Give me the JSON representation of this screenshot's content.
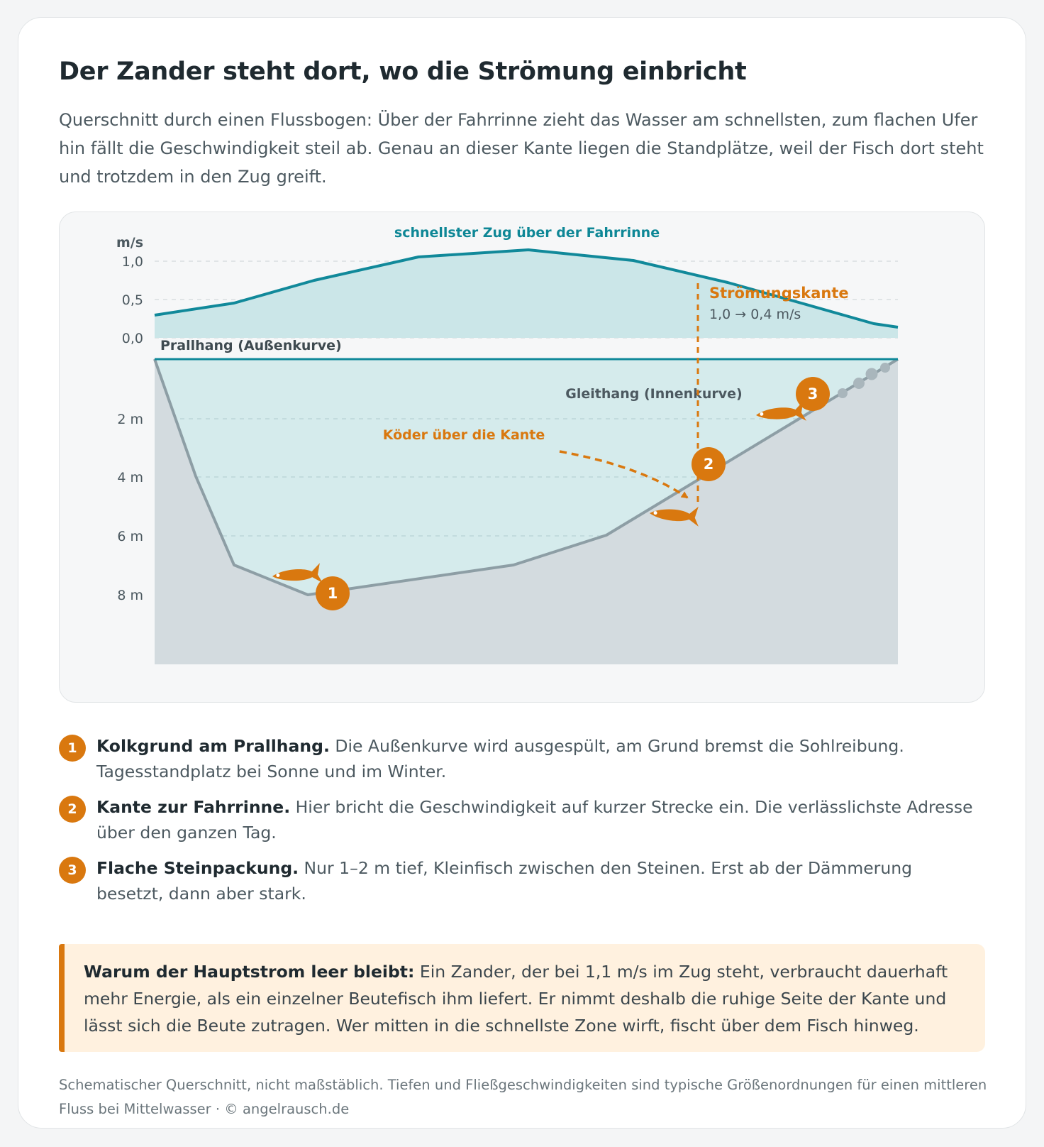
{
  "title": "Der Zander steht dort, wo die Strömung einbricht",
  "intro": "Querschnitt durch einen Flussbogen: Über der Fahrrinne zieht das Wasser am schnellsten, zum flachen Ufer hin fällt die Geschwindigkeit steil ab. Genau an dieser Kante liegen die Standplätze, weil der Fisch dort steht und trotzdem in den Zug greift.",
  "diagram": {
    "velocity_unit": "m/s",
    "velocity_ticks": [
      "1,0",
      "0,5",
      "0,0"
    ],
    "velocity_peak_label": "schnellster Zug über der Fahrrinne",
    "edge_title": "Strömungskante",
    "edge_value": "1,0 → 0,4 m/s",
    "outer_bank_label": "Prallhang (Außenkurve)",
    "inner_bank_label": "Gleithang (Innenkurve)",
    "lure_label": "Köder über die Kante",
    "depth_ticks": [
      "2 m",
      "4 m",
      "6 m",
      "8 m"
    ],
    "spot_markers": [
      "1",
      "2",
      "3"
    ],
    "colors": {
      "water": "#d5ebec",
      "velocity": "#11899a",
      "accent": "#d9780f",
      "bed": "#d3dbdf",
      "bank_line": "#8d9ea5"
    }
  },
  "legend": [
    {
      "num": "1",
      "title": "Kolkgrund am Prallhang.",
      "text": " Die Außenkurve wird ausgespült, am Grund bremst die Sohlreibung. Tagesstandplatz bei Sonne und im Winter."
    },
    {
      "num": "2",
      "title": "Kante zur Fahrrinne.",
      "text": " Hier bricht die Geschwindigkeit auf kurzer Strecke ein. Die verlässlichste Adresse über den ganzen Tag."
    },
    {
      "num": "3",
      "title": "Flache Steinpackung.",
      "text": " Nur 1–2 m tief, Kleinfisch zwischen den Steinen. Erst ab der Dämmerung besetzt, dann aber stark."
    }
  ],
  "note": {
    "title": "Warum der Hauptstrom leer bleibt:",
    "text": " Ein Zander, der bei 1,1 m/s im Zug steht, verbraucht dauerhaft mehr Energie, als ein einzelner Beutefisch ihm liefert. Er nimmt deshalb die ruhige Seite der Kante und lässt sich die Beute zutragen. Wer mitten in die schnellste Zone wirft, fischt über dem Fisch hinweg."
  },
  "footer": "Schematischer Querschnitt, nicht maßstäblich. Tiefen und Fließgeschwindigkeiten sind typische Größenordnungen für einen mittleren Fluss bei Mittelwasser · © angelrausch.de"
}
